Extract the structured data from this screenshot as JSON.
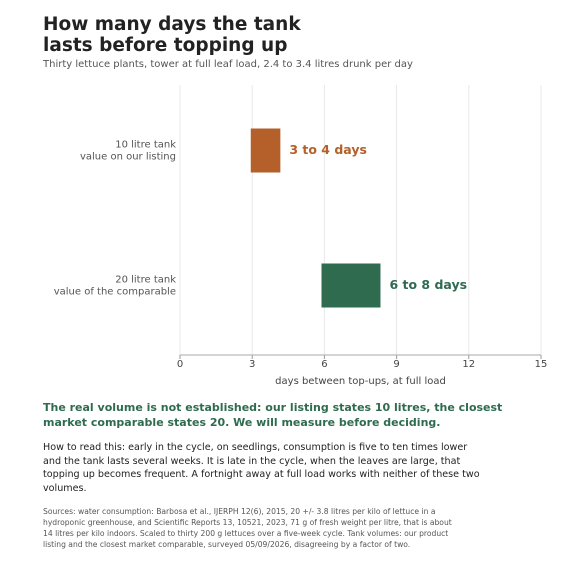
{
  "chart_data": {
    "type": "range-bar",
    "title": "How many days the tank lasts before topping up",
    "subtitle": "Thirty lettuce plants, tower at full leaf load, 2.4 to 3.4 litres drunk per day",
    "categories": [
      "10 litre tank",
      "20 litre tank"
    ],
    "category_notes": [
      "value on our listing",
      "value of the comparable"
    ],
    "low": [
      2.94,
      5.88
    ],
    "high": [
      4.17,
      8.33
    ],
    "value_labels": [
      "3 to 4 days",
      "6 to 8 days"
    ],
    "colors": [
      "#b5602a",
      "#2e6b4f"
    ],
    "xlim": [
      0,
      15
    ],
    "xticks": [
      0,
      3,
      6,
      9,
      12,
      15
    ],
    "xlabel": "days between top-ups, at full load",
    "grid": true
  },
  "notes": {
    "headline": "The real volume is not established: our listing states 10 litres, the closest market comparable states 20. We will measure before deciding.",
    "body": "How to read this: early in the cycle, on seedlings, consumption is five to ten times lower and the tank lasts several weeks. It is late in the cycle, when the leaves are large, that topping up becomes frequent. A fortnight away at full load works with neither of these two volumes.",
    "sources": "Sources: water consumption: Barbosa et al., IJERPH 12(6), 2015, 20 +/- 3.8 litres per kilo of lettuce in a hydroponic greenhouse, and Scientific Reports 13, 10521, 2023, 71 g of fresh weight per litre, that is about 14 litres per kilo indoors. Scaled to thirty 200 g lettuces over a five-week cycle. Tank volumes: our product listing and the closest market comparable, surveyed 05/09/2026, disagreeing by a factor of two."
  }
}
